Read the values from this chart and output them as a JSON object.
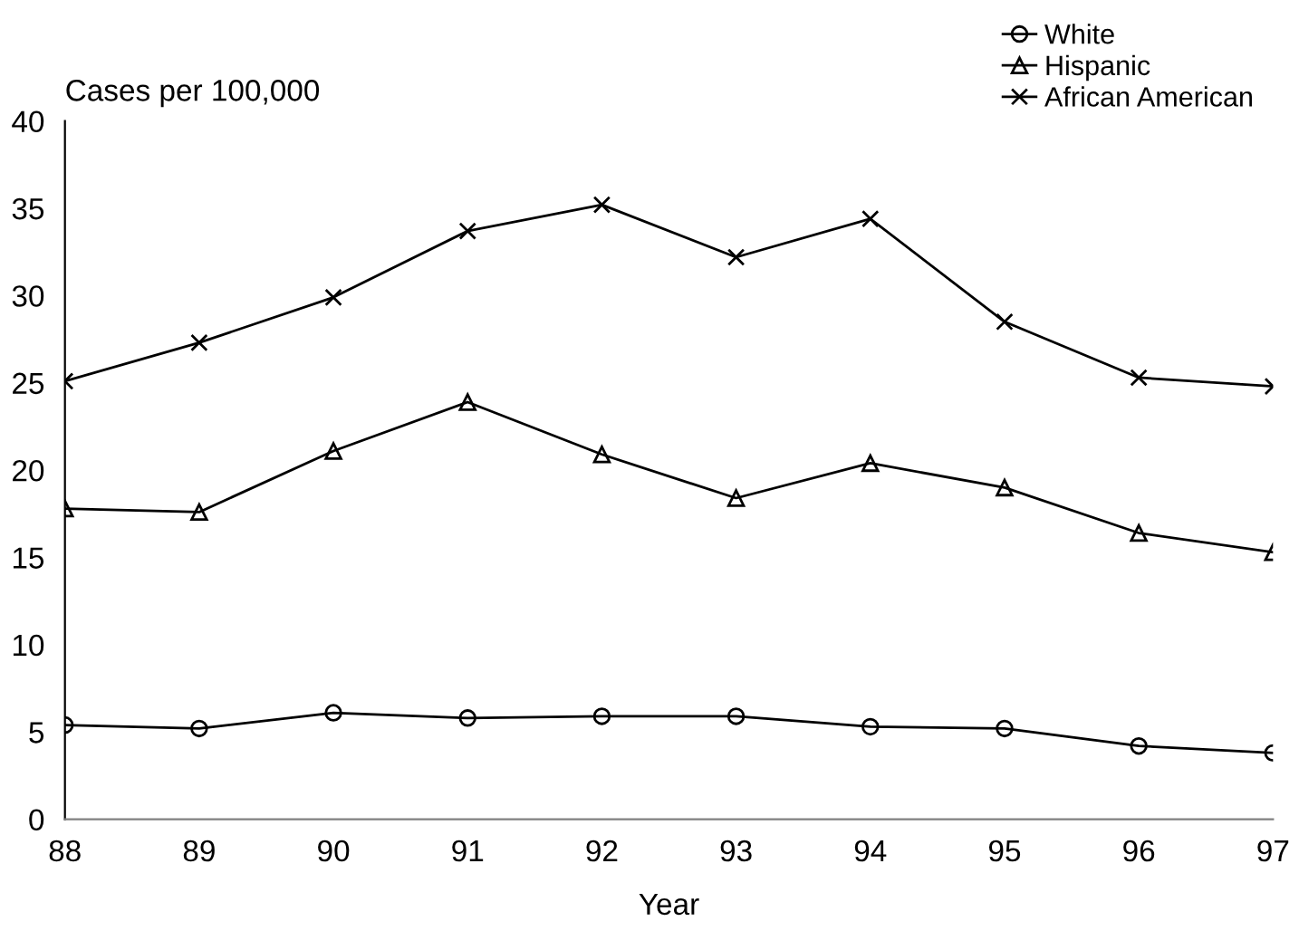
{
  "chart_data": {
    "type": "line",
    "xlabel": "Year",
    "ylabel": "Cases per 100,000",
    "x": [
      88,
      89,
      90,
      91,
      92,
      93,
      94,
      95,
      96,
      97
    ],
    "xlim": [
      88,
      97
    ],
    "xticks": [
      88,
      89,
      90,
      91,
      92,
      93,
      94,
      95,
      96,
      97
    ],
    "ylim": [
      0,
      40
    ],
    "yticks": [
      0,
      5,
      10,
      15,
      20,
      25,
      30,
      35,
      40
    ],
    "grid": false,
    "legend": "top right",
    "line_style": "solid",
    "series": [
      {
        "name": "White",
        "color": "#000000",
        "marker": "circle",
        "values": [
          5.4,
          5.2,
          6.1,
          5.8,
          5.9,
          5.9,
          5.3,
          5.2,
          4.2,
          3.8
        ]
      },
      {
        "name": "Hispanic",
        "color": "#000000",
        "marker": "triangle",
        "values": [
          17.8,
          17.6,
          21.1,
          23.9,
          20.9,
          18.4,
          20.4,
          19.0,
          16.4,
          15.3
        ]
      },
      {
        "name": "African American",
        "color": "#000000",
        "marker": "cross",
        "values": [
          25.1,
          27.3,
          29.9,
          33.7,
          35.2,
          32.2,
          34.4,
          28.5,
          25.3,
          24.8
        ]
      }
    ]
  }
}
